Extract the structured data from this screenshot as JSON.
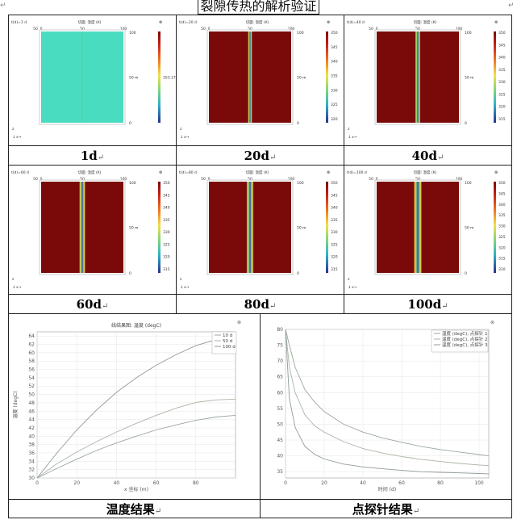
{
  "document": {
    "title": "裂隙传热的解析验证",
    "return_mark": "↵"
  },
  "simulations": {
    "plot_title": "切面: 温度 (K)",
    "axis_ticks_x": [
      "50",
      "0",
      "50",
      "100"
    ],
    "axis_ticks_y": [
      "100",
      "50",
      "0"
    ],
    "y_unit": "m",
    "axis_triad": [
      "z",
      "x",
      "y"
    ],
    "colors": {
      "hot": "#7a0a0a",
      "cold": "#3b47b0",
      "uniform": "#49dcc0"
    },
    "panels": [
      {
        "time_label": "t(d)=1 d",
        "caption": "1d",
        "colorbar_ticks": [
          "353.17"
        ],
        "uniform": true
      },
      {
        "time_label": "t(d)=20 d",
        "caption": "20d",
        "colorbar_ticks": [
          "350",
          "345",
          "340",
          "335",
          "330",
          "325",
          "320"
        ],
        "uniform": false
      },
      {
        "time_label": "t(d)=40 d",
        "caption": "40d",
        "colorbar_ticks": [
          "350",
          "345",
          "340",
          "335",
          "330",
          "325",
          "320",
          "315"
        ],
        "uniform": false
      },
      {
        "time_label": "t(d)=60 d",
        "caption": "60d",
        "colorbar_ticks": [
          "350",
          "345",
          "340",
          "335",
          "330",
          "325",
          "320",
          "315"
        ],
        "uniform": false
      },
      {
        "time_label": "t(d)=80 d",
        "caption": "80d",
        "colorbar_ticks": [
          "350",
          "345",
          "340",
          "335",
          "330",
          "325",
          "320",
          "315"
        ],
        "uniform": false
      },
      {
        "time_label": "t(d)=100 d",
        "caption": "100d",
        "colorbar_ticks": [
          "350",
          "345",
          "340",
          "335",
          "330",
          "325",
          "320",
          "315",
          "310"
        ],
        "uniform": false
      }
    ]
  },
  "results": {
    "temperature_caption": "温度结果",
    "probe_caption": "点探针结果"
  },
  "chart_data": [
    {
      "type": "line",
      "title": "线结果图: 温度 (degC)",
      "xlabel": "x 坐标 (m)",
      "ylabel": "温度 (degC)",
      "xlim": [
        0,
        100
      ],
      "ylim": [
        30,
        65
      ],
      "xticks": [
        0,
        20,
        40,
        60,
        80
      ],
      "yticks": [
        30,
        32,
        34,
        36,
        38,
        40,
        42,
        44,
        46,
        48,
        50,
        52,
        54,
        56,
        58,
        60,
        62,
        64
      ],
      "grid": true,
      "legend_position": "top-right",
      "x": [
        0,
        10,
        20,
        30,
        40,
        50,
        60,
        70,
        80,
        90,
        100
      ],
      "series": [
        {
          "name": "10 d",
          "values": [
            30,
            32.3,
            34.5,
            36.6,
            38.4,
            40.0,
            41.5,
            42.7,
            43.8,
            44.6,
            45.0
          ]
        },
        {
          "name": "50 d",
          "values": [
            30,
            33.4,
            36.2,
            38.7,
            41.0,
            43.1,
            45.0,
            46.7,
            48.1,
            48.7,
            48.9
          ]
        },
        {
          "name": "100 d",
          "values": [
            30,
            36.0,
            41.5,
            46.3,
            50.5,
            54.0,
            57.0,
            59.5,
            61.7,
            63.1,
            63.8
          ]
        }
      ]
    },
    {
      "type": "line",
      "title": "",
      "xlabel": "时间 (d)",
      "ylabel": "",
      "xlim": [
        0,
        105
      ],
      "ylim": [
        33,
        80
      ],
      "xticks": [
        0,
        20,
        40,
        60,
        80,
        100
      ],
      "yticks": [
        35,
        40,
        45,
        50,
        55,
        60,
        65,
        70,
        75,
        80
      ],
      "grid": true,
      "legend_position": "top-right",
      "x": [
        0,
        2,
        5,
        10,
        15,
        20,
        30,
        40,
        50,
        60,
        70,
        80,
        90,
        100,
        105
      ],
      "series": [
        {
          "name": "温度 (degC), 点探针 1",
          "values": [
            80,
            75,
            68,
            61,
            57,
            54,
            50,
            47.5,
            45.7,
            44.3,
            43.0,
            42.0,
            41.2,
            40.4,
            40.0
          ]
        },
        {
          "name": "温度 (degC), 点探针 2",
          "values": [
            80,
            68,
            60,
            53,
            49.5,
            47.5,
            44.5,
            42.3,
            40.9,
            39.8,
            38.9,
            38.2,
            37.6,
            37.1,
            36.9
          ]
        },
        {
          "name": "温度 (degC), 点探针 3",
          "values": [
            80,
            58,
            49,
            43,
            40.5,
            39.0,
            37.4,
            36.5,
            35.9,
            35.4,
            35.0,
            34.8,
            34.6,
            34.4,
            34.3
          ]
        }
      ]
    }
  ]
}
